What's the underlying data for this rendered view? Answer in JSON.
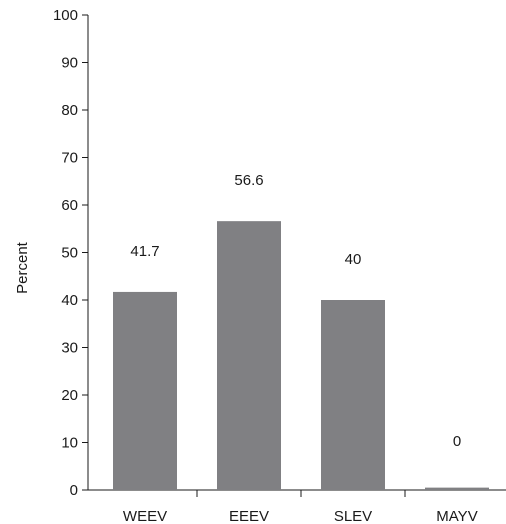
{
  "chart_data": {
    "type": "bar",
    "categories": [
      "WEEV",
      "EEEV",
      "SLEV",
      "MAYV"
    ],
    "values": [
      41.7,
      56.6,
      40,
      0.5
    ],
    "data_labels": [
      "41.7",
      "56.6",
      "40",
      "0"
    ],
    "ylabel": "Percent",
    "ylim": [
      0,
      100
    ],
    "yticks": [
      0,
      10,
      20,
      30,
      40,
      50,
      60,
      70,
      80,
      90,
      100
    ],
    "bar_color": "#808083",
    "axis_color": "#1a1a1a",
    "grid": false
  }
}
